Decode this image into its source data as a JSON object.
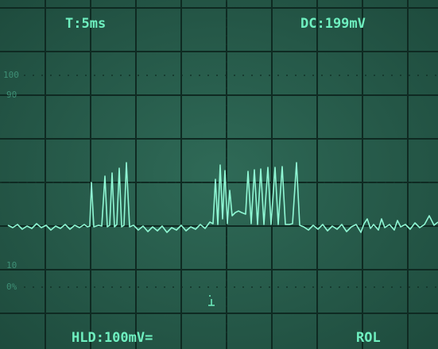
{
  "screen": {
    "top_left": "T:5ms",
    "top_right": "DC:199mV",
    "bottom_left": "HLD:100mV=",
    "bottom_right": "ROL",
    "scale_labels": [
      "100",
      "90",
      "10",
      "0%"
    ]
  }
}
